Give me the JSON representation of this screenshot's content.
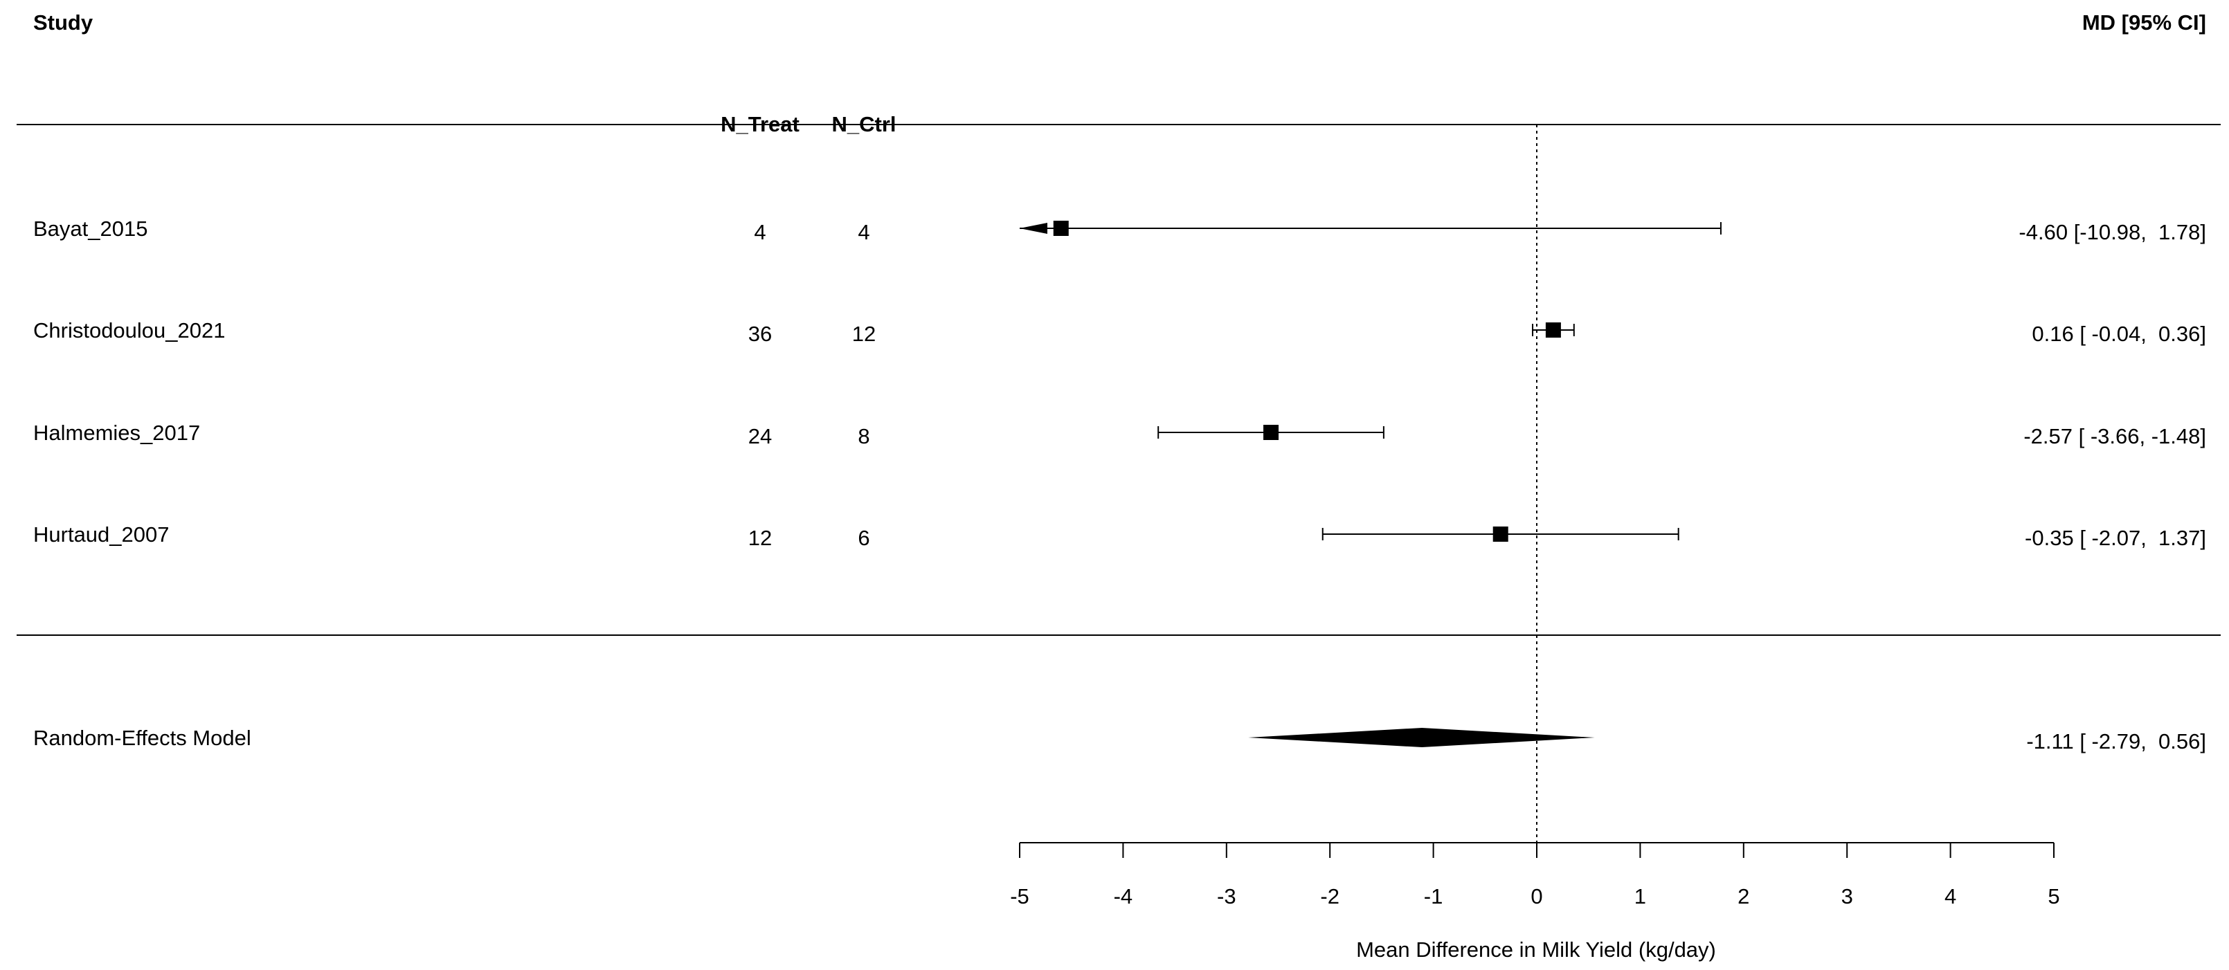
{
  "chart_data": {
    "type": "forest",
    "headers": {
      "study": "Study",
      "n_treat": "N_Treat",
      "n_ctrl": "N_Ctrl",
      "effect": "MD [95% CI]"
    },
    "studies": [
      {
        "name": "Bayat_2015",
        "n_treat": "4",
        "n_ctrl": "4",
        "md": -4.6,
        "lower": -10.98,
        "upper": 1.78,
        "ci_text": "-4.60 [-10.98,  1.78]"
      },
      {
        "name": "Christodoulou_2021",
        "n_treat": "36",
        "n_ctrl": "12",
        "md": 0.16,
        "lower": -0.04,
        "upper": 0.36,
        "ci_text": "0.16 [ -0.04,  0.36]"
      },
      {
        "name": "Halmemies_2017",
        "n_treat": "24",
        "n_ctrl": "8",
        "md": -2.57,
        "lower": -3.66,
        "upper": -1.48,
        "ci_text": "-2.57 [ -3.66, -1.48]"
      },
      {
        "name": "Hurtaud_2007",
        "n_treat": "12",
        "n_ctrl": "6",
        "md": -0.35,
        "lower": -2.07,
        "upper": 1.37,
        "ci_text": "-0.35 [ -2.07,  1.37]"
      }
    ],
    "summary": {
      "name": "Random-Effects Model",
      "md": -1.11,
      "lower": -2.79,
      "upper": 0.56,
      "ci_text": "-1.11 [ -2.79,  0.56]"
    },
    "xlabel": "Mean Difference in Milk Yield (kg/day)",
    "xlim": [
      -5,
      5
    ],
    "xticks": [
      -5,
      -4,
      -3,
      -2,
      -1,
      0,
      1,
      2,
      3,
      4,
      5
    ],
    "reference_line": 0
  }
}
